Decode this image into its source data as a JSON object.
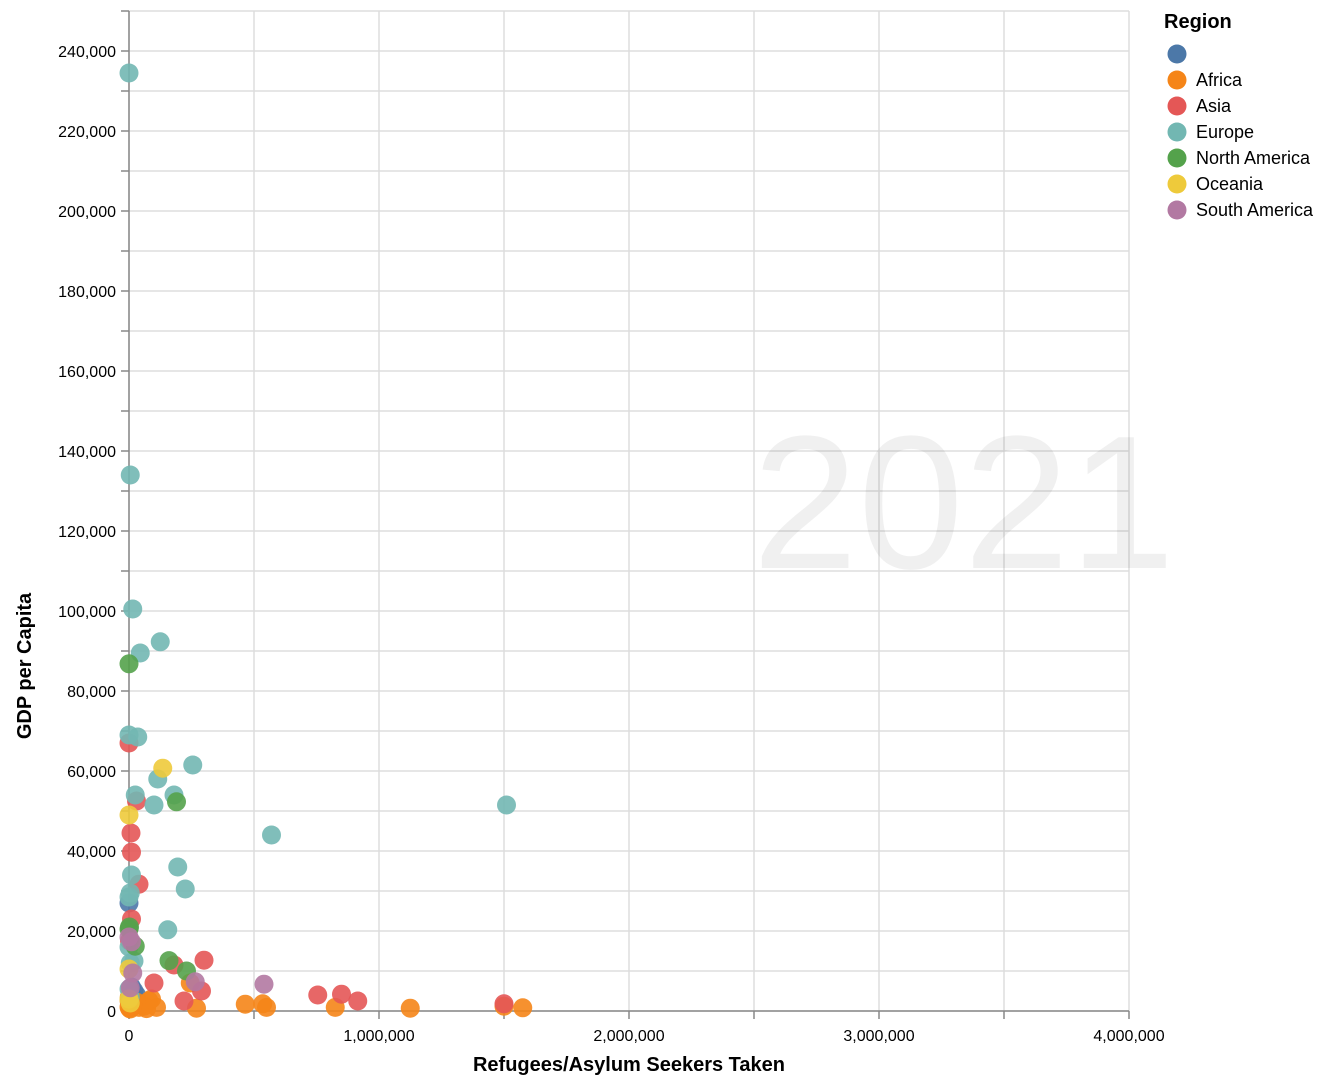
{
  "chart_data": {
    "type": "scatter",
    "watermark_year": "2021",
    "xlabel": "Refugees/Asylum Seekers Taken",
    "ylabel": "GDP per Capita",
    "xlim": [
      0,
      4000000
    ],
    "ylim": [
      0,
      250000
    ],
    "x_ticks": [
      0,
      1000000,
      2000000,
      3000000,
      4000000
    ],
    "x_tick_labels": [
      "0",
      "1,000,000",
      "2,000,000",
      "3,000,000",
      "4,000,000"
    ],
    "y_ticks": [
      0,
      20000,
      40000,
      60000,
      80000,
      100000,
      120000,
      140000,
      160000,
      180000,
      200000,
      220000,
      240000
    ],
    "y_tick_labels": [
      "0",
      "20,000",
      "40,000",
      "60,000",
      "80,000",
      "100,000",
      "120,000",
      "140,000",
      "160,000",
      "180,000",
      "200,000",
      "220,000",
      "240,000"
    ],
    "grid": true,
    "legend": {
      "title": "Region",
      "placement": "top-right",
      "entries": [
        {
          "label": "",
          "color": "#4c78a8"
        },
        {
          "label": "Africa",
          "color": "#f58518"
        },
        {
          "label": "Asia",
          "color": "#e45756"
        },
        {
          "label": "Europe",
          "color": "#72b7b2"
        },
        {
          "label": "North America",
          "color": "#54a24b"
        },
        {
          "label": "Oceania",
          "color": "#eeca3b"
        },
        {
          "label": "South America",
          "color": "#b279a2"
        }
      ]
    },
    "series": [
      {
        "name": "",
        "color": "#4c78a8",
        "points": [
          [
            0,
            27000
          ],
          [
            10000,
            6000
          ],
          [
            20000,
            5000
          ],
          [
            30000,
            4000
          ],
          [
            5000,
            3000
          ],
          [
            40000,
            2000
          ],
          [
            25000,
            1500
          ]
        ]
      },
      {
        "name": "Africa",
        "color": "#f58518",
        "points": [
          [
            1575000,
            800
          ],
          [
            1500000,
            1200
          ],
          [
            1125000,
            700
          ],
          [
            825000,
            900
          ],
          [
            550000,
            900
          ],
          [
            535000,
            1800
          ],
          [
            465000,
            1700
          ],
          [
            270000,
            700
          ],
          [
            245000,
            7000
          ],
          [
            110000,
            900
          ],
          [
            90000,
            3000
          ],
          [
            80000,
            2500
          ],
          [
            70000,
            600
          ],
          [
            60000,
            1200
          ],
          [
            40000,
            900
          ],
          [
            30000,
            2200
          ],
          [
            15000,
            1500
          ],
          [
            5000,
            500
          ],
          [
            2000,
            700
          ],
          [
            1000,
            3500
          ],
          [
            0,
            1000
          ],
          [
            500,
            2500
          ]
        ]
      },
      {
        "name": "Asia",
        "color": "#e45756",
        "points": [
          [
            1500000,
            1800
          ],
          [
            915000,
            2500
          ],
          [
            850000,
            4200
          ],
          [
            755000,
            4000
          ],
          [
            300000,
            12700
          ],
          [
            290000,
            5000
          ],
          [
            220000,
            2500
          ],
          [
            180000,
            11500
          ],
          [
            100000,
            7000
          ],
          [
            40000,
            31700
          ],
          [
            30000,
            52500
          ],
          [
            10000,
            39700
          ],
          [
            8000,
            44500
          ],
          [
            10000,
            23000
          ],
          [
            0,
            67000
          ],
          [
            2000,
            17500
          ]
        ]
      },
      {
        "name": "Europe",
        "color": "#72b7b2",
        "points": [
          [
            0,
            234500
          ],
          [
            5000,
            134000
          ],
          [
            15000,
            100500
          ],
          [
            45000,
            89500
          ],
          [
            125000,
            92300
          ],
          [
            35000,
            68500
          ],
          [
            0,
            69000
          ],
          [
            255000,
            61500
          ],
          [
            115000,
            58000
          ],
          [
            100000,
            51500
          ],
          [
            180000,
            54000
          ],
          [
            25000,
            54000
          ],
          [
            1510000,
            51500
          ],
          [
            570000,
            44000
          ],
          [
            195000,
            36000
          ],
          [
            225000,
            30500
          ],
          [
            10000,
            34000
          ],
          [
            5000,
            29500
          ],
          [
            0,
            28500
          ],
          [
            155000,
            20300
          ],
          [
            20000,
            12500
          ],
          [
            0,
            16000
          ],
          [
            5000,
            12000
          ],
          [
            0,
            5500
          ],
          [
            5000,
            3500
          ]
        ]
      },
      {
        "name": "North America",
        "color": "#54a24b",
        "points": [
          [
            0,
            86800
          ],
          [
            190000,
            52300
          ],
          [
            230000,
            10000
          ],
          [
            160000,
            12600
          ],
          [
            25000,
            16200
          ],
          [
            0,
            20500
          ],
          [
            2000,
            21000
          ]
        ]
      },
      {
        "name": "Oceania",
        "color": "#eeca3b",
        "points": [
          [
            135000,
            60700
          ],
          [
            0,
            49000
          ],
          [
            0,
            10500
          ],
          [
            0,
            3000
          ],
          [
            5000,
            2000
          ]
        ]
      },
      {
        "name": "South America",
        "color": "#b279a2",
        "points": [
          [
            540000,
            6700
          ],
          [
            265000,
            7300
          ],
          [
            10000,
            17300
          ],
          [
            0,
            18500
          ],
          [
            5000,
            5800
          ],
          [
            15000,
            9500
          ]
        ]
      }
    ]
  }
}
